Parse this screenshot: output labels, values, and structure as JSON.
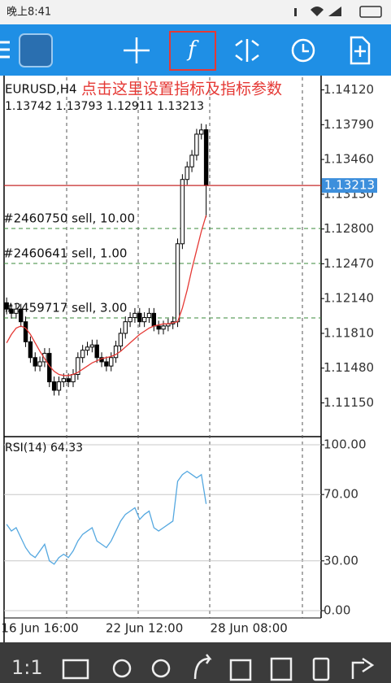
{
  "status_bar": {
    "time": "晚上8:41"
  },
  "annotation": "点击这里设置指标及指标参数",
  "toolbar": {
    "zoom": "1:1"
  },
  "chart_data": [
    {
      "type": "candlestick",
      "title": "EURUSD,H4",
      "open": [
        1.121,
        1.1204,
        1.12,
        1.1204,
        1.1192,
        1.1173,
        1.1158,
        1.115,
        1.1154,
        1.1162,
        1.1135,
        1.1127,
        1.1135,
        1.1138,
        1.1135,
        1.1142,
        1.1158,
        1.1165,
        1.1168,
        1.117,
        1.1158,
        1.1154,
        1.115,
        1.1158,
        1.1169,
        1.1181,
        1.1192,
        1.1196,
        1.12,
        1.1192,
        1.1196,
        1.12,
        1.1188,
        1.1185,
        1.1188,
        1.119,
        1.1192,
        1.1266,
        1.1327,
        1.1339,
        1.135,
        1.137,
        1.13742
      ],
      "high": [
        1.1215,
        1.1209,
        1.1209,
        1.1209,
        1.1197,
        1.1178,
        1.1163,
        1.1159,
        1.1167,
        1.1167,
        1.114,
        1.114,
        1.1143,
        1.1143,
        1.1147,
        1.1163,
        1.117,
        1.1173,
        1.1175,
        1.1175,
        1.1163,
        1.1159,
        1.1163,
        1.1174,
        1.1186,
        1.1197,
        1.1201,
        1.1205,
        1.1205,
        1.1201,
        1.1205,
        1.1205,
        1.1193,
        1.1193,
        1.1195,
        1.1197,
        1.1271,
        1.1332,
        1.1344,
        1.1355,
        1.1375,
        1.138,
        1.13793
      ],
      "low": [
        1.1199,
        1.1195,
        1.1195,
        1.1187,
        1.1168,
        1.1153,
        1.1145,
        1.1145,
        1.1149,
        1.113,
        1.1122,
        1.1122,
        1.113,
        1.113,
        1.113,
        1.1137,
        1.1153,
        1.116,
        1.1163,
        1.1153,
        1.1149,
        1.1145,
        1.1145,
        1.1153,
        1.1164,
        1.1176,
        1.1187,
        1.1191,
        1.1187,
        1.1187,
        1.1191,
        1.1183,
        1.118,
        1.118,
        1.1183,
        1.1185,
        1.1187,
        1.1261,
        1.1322,
        1.1334,
        1.1345,
        1.1365,
        1.12911
      ],
      "close": [
        1.1204,
        1.12,
        1.1204,
        1.1192,
        1.1173,
        1.1158,
        1.115,
        1.1154,
        1.1162,
        1.1135,
        1.1127,
        1.1135,
        1.1138,
        1.1135,
        1.1142,
        1.1158,
        1.1165,
        1.1168,
        1.117,
        1.1158,
        1.1154,
        1.115,
        1.1158,
        1.1169,
        1.1181,
        1.1192,
        1.1196,
        1.12,
        1.1192,
        1.1196,
        1.12,
        1.1188,
        1.1185,
        1.1188,
        1.119,
        1.1192,
        1.1266,
        1.1327,
        1.1339,
        1.135,
        1.137,
        1.1374,
        1.13213
      ],
      "colors": {
        "up": "#ffffff",
        "down": "#000000",
        "wick": "#000000"
      },
      "moving_average": {
        "color": "#e53935",
        "values": [
          1.1172,
          1.118,
          1.1186,
          1.1188,
          1.1186,
          1.118,
          1.1172,
          1.1164,
          1.1157,
          1.115,
          1.1145,
          1.1142,
          1.1141,
          1.1141,
          1.1142,
          1.1144,
          1.1147,
          1.115,
          1.1153,
          1.1155,
          1.1157,
          1.1158,
          1.1159,
          1.1161,
          1.1164,
          1.1168,
          1.1172,
          1.1176,
          1.118,
          1.1183,
          1.1186,
          1.1188,
          1.1189,
          1.119,
          1.119,
          1.1191,
          1.1192,
          1.1205,
          1.1222,
          1.1242,
          1.126,
          1.1278,
          1.1293
        ]
      },
      "orders": [
        {
          "label": "#2460750 sell, 10.00",
          "price": 1.12805
        },
        {
          "label": "#2460641 sell, 1.00",
          "price": 1.12473
        },
        {
          "label": "#2459717 sell, 3.00",
          "price": 1.11956
        }
      ],
      "order_color": "#3a8a3a",
      "price_line_color": "#c62828",
      "price_label_color": "#3d8fdc",
      "xlim": [
        -1.4,
        66.2
      ],
      "ylim": [
        1.1083,
        1.1424
      ],
      "yticks": [
        {
          "value": 1.1412,
          "label": "1.14120"
        },
        {
          "value": 1.1379,
          "label": "1.13790"
        },
        {
          "value": 1.1346,
          "label": "1.13460"
        },
        {
          "value": 1.1313,
          "label": "1.13130"
        },
        {
          "value": 1.128,
          "label": "1.12800"
        },
        {
          "value": 1.1247,
          "label": "1.12470"
        },
        {
          "value": 1.1214,
          "label": "1.12140"
        },
        {
          "value": 1.1181,
          "label": "1.11810"
        },
        {
          "value": 1.1148,
          "label": "1.11480"
        },
        {
          "value": 1.1115,
          "label": "1.11150"
        }
      ]
    },
    {
      "type": "line",
      "title": "RSI(14)",
      "color": "#55a8e0",
      "values": [
        52,
        48,
        50,
        44,
        38,
        34,
        32,
        36,
        40,
        30,
        28,
        32,
        34,
        32,
        36,
        42,
        46,
        48,
        50,
        42,
        40,
        38,
        42,
        48,
        54,
        58,
        60,
        62,
        55,
        58,
        60,
        50,
        48,
        50,
        52,
        54,
        78,
        82,
        84,
        82,
        80,
        82,
        64.33
      ],
      "xlim": [
        -1.4,
        66.2
      ],
      "xticks": [
        {
          "value": 7,
          "label": "16 Jun 16:00"
        },
        {
          "value": 29,
          "label": "22 Jun 12:00"
        },
        {
          "value": 51,
          "label": "28 Jun 08:00"
        }
      ],
      "ylim": [
        0,
        100
      ],
      "yticks": [
        {
          "value": 100,
          "label": "100.00"
        },
        {
          "value": 70,
          "label": "70.00"
        },
        {
          "value": 30,
          "label": "30.00"
        },
        {
          "value": 0,
          "label": "0.00"
        }
      ],
      "grid": true
    }
  ]
}
